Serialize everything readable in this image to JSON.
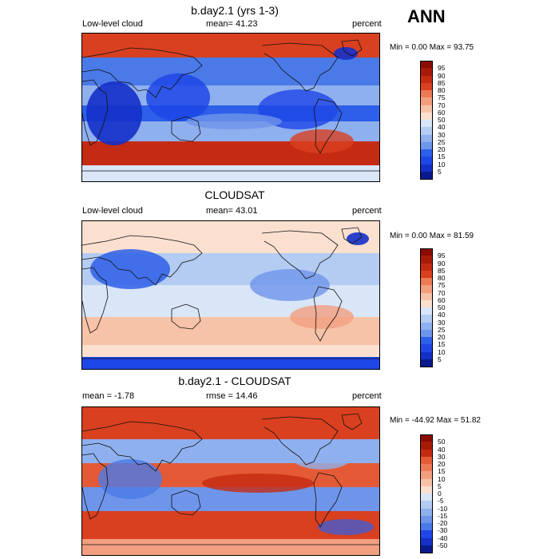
{
  "season": "ANN",
  "colors": {
    "seq": [
      "#0a1a8c",
      "#1430c8",
      "#1e46e6",
      "#2d5fe8",
      "#4a7ae8",
      "#6e95ea",
      "#8fb0ee",
      "#b4cbf2",
      "#d9e6f8",
      "#fbe0d0",
      "#f7c3a8",
      "#f29f80",
      "#ec7a56",
      "#e45a36",
      "#d9401f",
      "#c42b12",
      "#a81a08",
      "#8a0c03"
    ],
    "diff": [
      "#0a1a8c",
      "#1430c8",
      "#1e46e6",
      "#2d5fe8",
      "#4a7ae8",
      "#6e95ea",
      "#8fb0ee",
      "#b4cbf2",
      "#d9e6f8",
      "#ffffff",
      "#fbe0d0",
      "#f7c3a8",
      "#f29f80",
      "#ec7a56",
      "#e45a36",
      "#d9401f",
      "#c42b12",
      "#a81a08",
      "#8a0c03"
    ]
  },
  "panels": [
    {
      "title": "b.day2.1 (yrs 1-3)",
      "left_label": "Low-level cloud",
      "center_label": "mean=  41.23",
      "right_label": "percent",
      "minmax": "Min =   0.00 Max =  93.75",
      "cbar_labels": [
        "95",
        "90",
        "85",
        "80",
        "75",
        "70",
        "60",
        "50",
        "40",
        "30",
        "25",
        "20",
        "15",
        "10",
        "5"
      ],
      "style": "model"
    },
    {
      "title": "CLOUDSAT",
      "left_label": "Low-level cloud",
      "center_label": "mean=  43.01",
      "right_label": "percent",
      "minmax": "Min =   0.00 Max =  81.59",
      "cbar_labels": [
        "95",
        "90",
        "85",
        "80",
        "75",
        "70",
        "60",
        "50",
        "40",
        "30",
        "25",
        "20",
        "15",
        "10",
        "5"
      ],
      "style": "obs"
    },
    {
      "title": "b.day2.1 - CLOUDSAT",
      "left_label": "mean =  -1.78",
      "center_label": "rmse =  14.46",
      "right_label": "percent",
      "minmax": "Min = -44.92 Max =  51.82",
      "cbar_labels": [
        "50",
        "40",
        "30",
        "20",
        "15",
        "10",
        "5",
        "0",
        "-5",
        "-10",
        "-15",
        "-20",
        "-30",
        "-40",
        "-50"
      ],
      "style": "diff"
    }
  ]
}
